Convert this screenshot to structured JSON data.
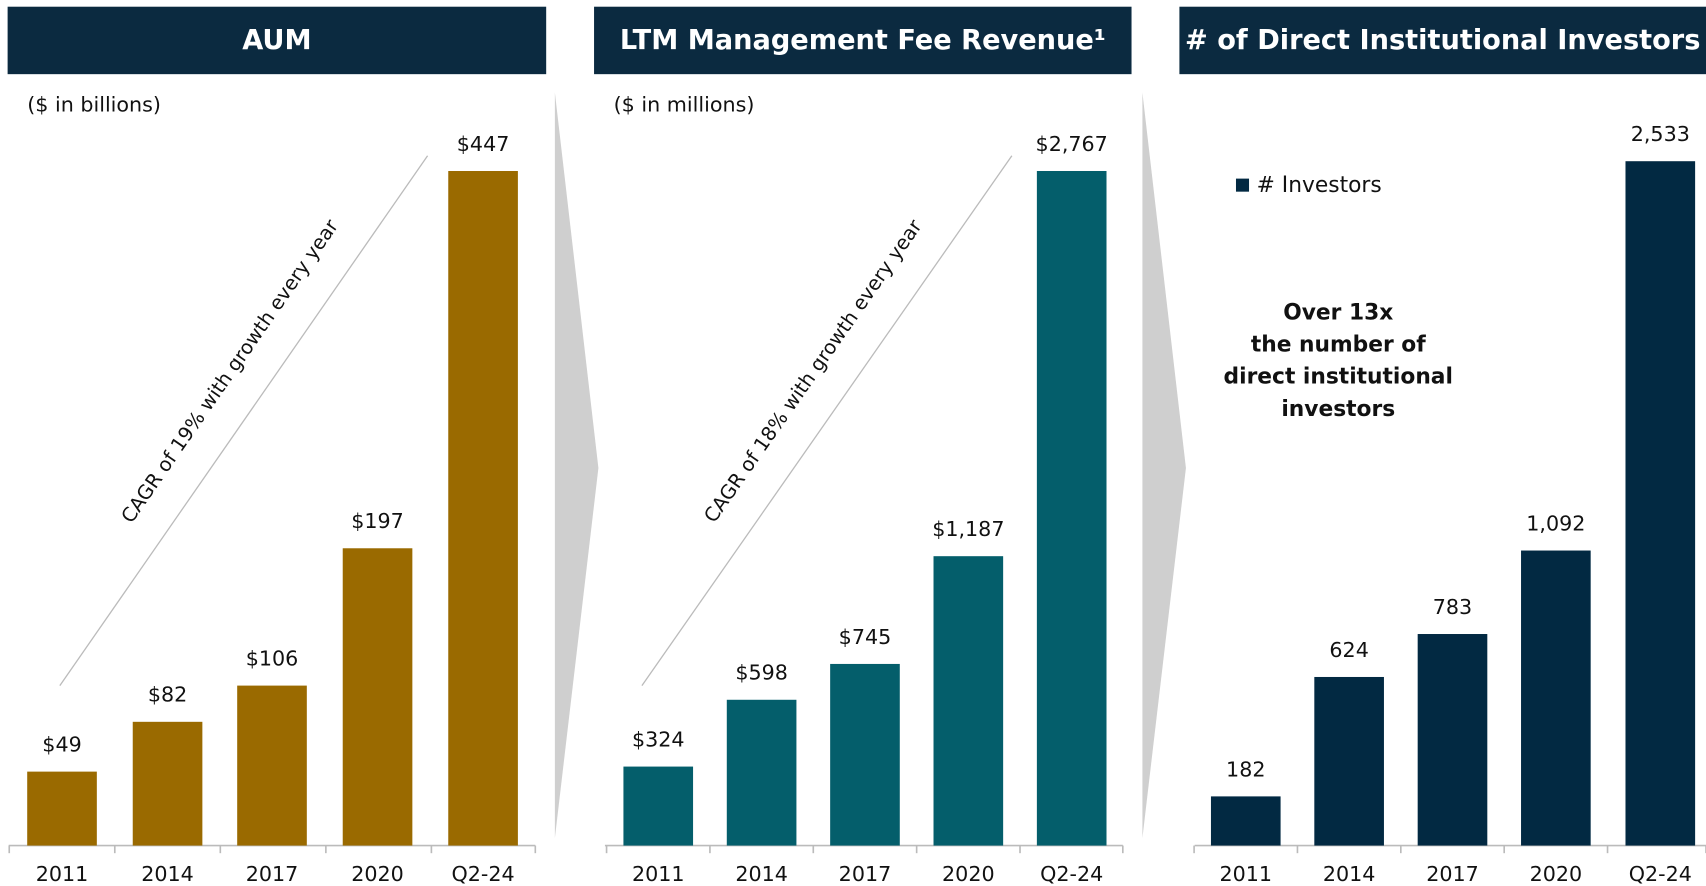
{
  "chart_data": [
    {
      "type": "bar",
      "title": "AUM",
      "subtitle": "($ in billions)",
      "categories": [
        "2011",
        "2014",
        "2017",
        "2020",
        "Q2-24"
      ],
      "values": [
        49,
        82,
        106,
        197,
        447
      ],
      "value_labels": [
        "$49",
        "$82",
        "$106",
        "$197",
        "$447"
      ],
      "color": "#9a6a00",
      "annotation": "CAGR of 19% with growth every year"
    },
    {
      "type": "bar",
      "title": "LTM Management Fee Revenue¹",
      "subtitle": "($ in millions)",
      "categories": [
        "2011",
        "2014",
        "2017",
        "2020",
        "Q2-24"
      ],
      "values": [
        324,
        598,
        745,
        1187,
        2767
      ],
      "value_labels": [
        "$324",
        "$598",
        "$745",
        "$1,187",
        "$2,767"
      ],
      "color": "#045e6b",
      "annotation": "CAGR of 18% with growth every year"
    },
    {
      "type": "bar",
      "title": "# of Direct Institutional Investors",
      "categories": [
        "2011",
        "2014",
        "2017",
        "2020",
        "Q2-24"
      ],
      "series": [
        {
          "name": "# Investors",
          "color": "#022942",
          "values": [
            182,
            624,
            783,
            1092,
            2533
          ],
          "value_labels": [
            "182",
            "624",
            "783",
            "1,092",
            "2,533"
          ]
        }
      ],
      "annotation_lines": [
        "Over 13x",
        "the number of",
        "direct institutional",
        "investors"
      ]
    }
  ]
}
